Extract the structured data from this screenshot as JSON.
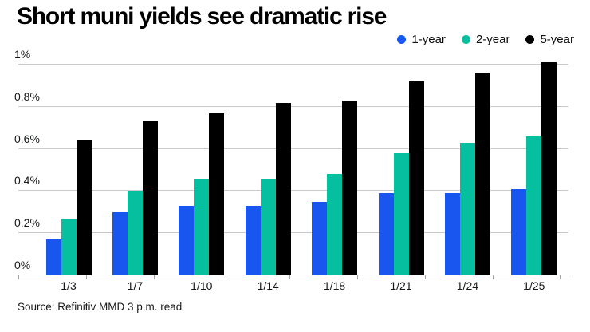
{
  "chart_data": {
    "type": "bar",
    "title": "Short muni yields see dramatic rise",
    "source": "Source: Refinitiv MMD 3 p.m. read",
    "xlabel": "",
    "ylabel": "",
    "categories": [
      "1/3",
      "1/7",
      "1/10",
      "1/14",
      "1/18",
      "1/21",
      "1/24",
      "1/25"
    ],
    "series": [
      {
        "name": "1-year",
        "color": "#1955ef",
        "values": [
          0.17,
          0.3,
          0.33,
          0.33,
          0.35,
          0.39,
          0.39,
          0.41
        ]
      },
      {
        "name": "2-year",
        "color": "#05bf9e",
        "values": [
          0.27,
          0.4,
          0.46,
          0.46,
          0.48,
          0.58,
          0.63,
          0.66
        ]
      },
      {
        "name": "5-year",
        "color": "#000000",
        "values": [
          0.64,
          0.73,
          0.77,
          0.82,
          0.83,
          0.92,
          0.96,
          1.01
        ]
      }
    ],
    "yticks": [
      {
        "value": 0.0,
        "label": "0%"
      },
      {
        "value": 0.2,
        "label": "0.2%"
      },
      {
        "value": 0.4,
        "label": "0.4%"
      },
      {
        "value": 0.6,
        "label": "0.6%"
      },
      {
        "value": 0.8,
        "label": "0.8%"
      },
      {
        "value": 1.0,
        "label": "1%"
      }
    ],
    "ylim": [
      0,
      1.0
    ],
    "grid": true,
    "legend_position": "top-right",
    "units": "percent"
  },
  "colors": {
    "background": "#ffffff",
    "gridline": "#c9c9c9",
    "axis": "#a6a6a6",
    "text": "#16181a",
    "title": "#000000"
  }
}
